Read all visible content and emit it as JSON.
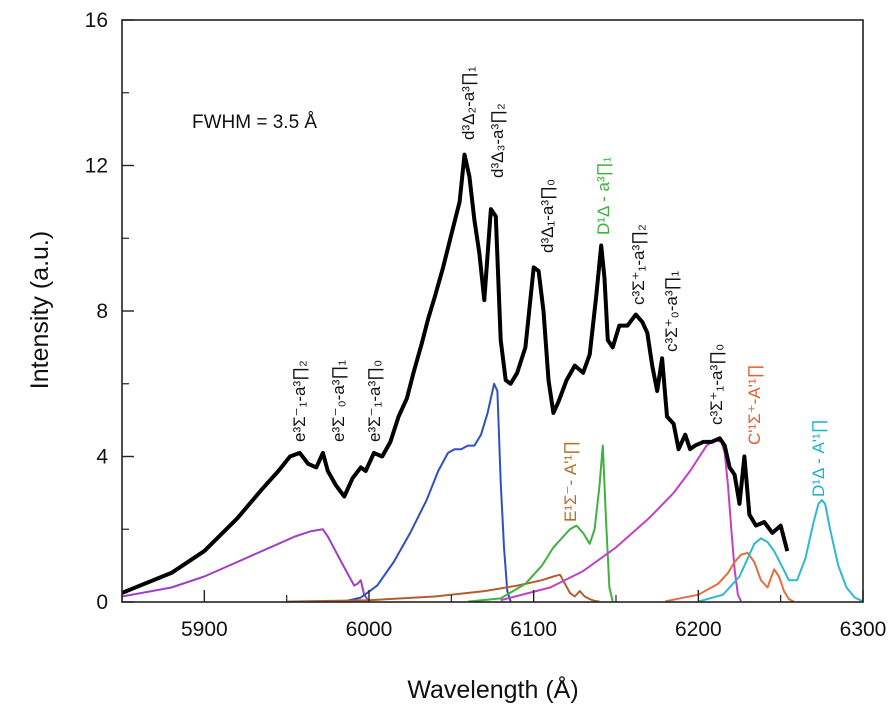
{
  "chart_data": {
    "type": "line",
    "xlabel": "Wavelength (Å)",
    "ylabel": "Intensity (a.u.)",
    "xlim": [
      5850,
      6300
    ],
    "ylim": [
      0,
      16
    ],
    "x_ticks": [
      "5900",
      "6000",
      "6100",
      "6200",
      "6300"
    ],
    "y_ticks": [
      "0",
      "4",
      "8",
      "12",
      "16"
    ],
    "grid": false,
    "annotations": [
      {
        "id": "fwhm",
        "text": "FWHM = 3.5 Å"
      },
      {
        "id": "e1_2",
        "text": "e³Σ⁻₁-a³∏₂"
      },
      {
        "id": "e0_1",
        "text": "e³Σ⁻₀-a³∏₁"
      },
      {
        "id": "e1_0",
        "text": "e³Σ⁻₁-a³∏₀"
      },
      {
        "id": "d2_1",
        "text": "d³Δ₂-a³∏₁"
      },
      {
        "id": "d3_2",
        "text": "d³Δ₃-a³∏₂"
      },
      {
        "id": "d1_0",
        "text": "d³Δ₁-a³∏₀"
      },
      {
        "id": "D1_1",
        "text": "D¹Δ - a³∏₁"
      },
      {
        "id": "c1_2",
        "text": "c³Σ⁺₁-a³∏₂"
      },
      {
        "id": "c0_1",
        "text": "c³Σ⁺₀-a³∏₁"
      },
      {
        "id": "c1_0",
        "text": "c³Σ⁺₁-a³∏₀"
      },
      {
        "id": "E_A",
        "text": "E¹Σ⁻- A'¹∏"
      },
      {
        "id": "C_A",
        "text": "C'¹Σ⁺-A'¹∏"
      },
      {
        "id": "D_A",
        "text": "D¹Δ - A'¹∏"
      }
    ],
    "series": [
      {
        "color": "#000000",
        "x": [
          5850,
          5880,
          5900,
          5920,
          5935,
          5945,
          5952,
          5958,
          5963,
          5968,
          5972,
          5975,
          5980,
          5985,
          5990,
          5995,
          5998,
          6003,
          6008,
          6013,
          6018,
          6023,
          6027,
          6032,
          6036,
          6040,
          6045,
          6050,
          6055,
          6058,
          6061,
          6064,
          6067,
          6070,
          6074,
          6077,
          6080,
          6083,
          6086,
          6090,
          6095,
          6100,
          6103,
          6106,
          6109,
          6112,
          6115,
          6120,
          6125,
          6130,
          6134,
          6138,
          6141,
          6143,
          6145,
          6148,
          6152,
          6157,
          6162,
          6166,
          6169,
          6172,
          6175,
          6178,
          6181,
          6185,
          6188,
          6192,
          6195,
          6198,
          6203,
          6208,
          6213,
          6216,
          6219,
          6222,
          6225,
          6228,
          6231,
          6235,
          6240,
          6245,
          6250,
          6254
        ],
        "y": [
          0.25,
          0.8,
          1.4,
          2.3,
          3.1,
          3.6,
          4.0,
          4.1,
          3.8,
          3.7,
          4.1,
          3.6,
          3.2,
          2.9,
          3.4,
          3.7,
          3.6,
          4.1,
          4.0,
          4.4,
          5.1,
          5.6,
          6.3,
          7.1,
          7.8,
          8.4,
          9.2,
          10.1,
          11.0,
          12.3,
          11.7,
          10.5,
          9.6,
          8.3,
          10.8,
          10.6,
          7.2,
          6.1,
          6.0,
          6.3,
          7.0,
          9.2,
          9.1,
          8.0,
          6.1,
          5.2,
          5.5,
          6.1,
          6.5,
          6.3,
          6.8,
          8.4,
          9.8,
          8.9,
          7.2,
          7.0,
          7.6,
          7.6,
          7.9,
          7.7,
          7.4,
          6.5,
          5.8,
          6.7,
          5.1,
          4.9,
          4.2,
          4.6,
          4.2,
          4.3,
          4.4,
          4.4,
          4.5,
          4.3,
          3.7,
          3.5,
          2.7,
          4.0,
          2.4,
          2.1,
          2.2,
          1.9,
          2.1,
          1.4
        ]
      },
      {
        "color": "#a040c0",
        "x": [
          5850,
          5880,
          5900,
          5920,
          5940,
          5955,
          5965,
          5972,
          5975,
          5982,
          5988,
          5991,
          5993,
          5995,
          5997,
          6000
        ],
        "y": [
          0.15,
          0.4,
          0.7,
          1.1,
          1.5,
          1.8,
          1.95,
          2.0,
          1.8,
          1.2,
          0.7,
          0.45,
          0.5,
          0.6,
          0.2,
          0.02
        ]
      },
      {
        "color": "#3050c0",
        "x": [
          5985,
          5995,
          6005,
          6015,
          6025,
          6035,
          6042,
          6048,
          6052,
          6056,
          6060,
          6064,
          6068,
          6072,
          6076,
          6078,
          6080,
          6082,
          6084,
          6086
        ],
        "y": [
          0.02,
          0.12,
          0.45,
          1.1,
          1.9,
          2.8,
          3.6,
          4.1,
          4.2,
          4.2,
          4.3,
          4.3,
          4.6,
          5.2,
          6.0,
          5.8,
          3.3,
          1.5,
          0.3,
          0.02
        ]
      },
      {
        "color": "#b06030",
        "x": [
          5950,
          6000,
          6040,
          6070,
          6090,
          6105,
          6112,
          6116,
          6119,
          6122,
          6125,
          6128,
          6131,
          6134,
          6137,
          6140
        ],
        "y": [
          0.01,
          0.05,
          0.15,
          0.3,
          0.45,
          0.6,
          0.7,
          0.75,
          0.5,
          0.25,
          0.15,
          0.3,
          0.15,
          0.08,
          0.03,
          0.01
        ]
      },
      {
        "color": "#40b040",
        "x": [
          6060,
          6080,
          6095,
          6105,
          6112,
          6118,
          6122,
          6126,
          6130,
          6134,
          6137,
          6140,
          6142,
          6144,
          6146,
          6148
        ],
        "y": [
          0.01,
          0.1,
          0.5,
          1.0,
          1.5,
          1.8,
          2.0,
          2.1,
          1.9,
          1.6,
          2.0,
          3.2,
          4.3,
          2.2,
          0.4,
          0.02
        ]
      },
      {
        "color": "#c040c8",
        "x": [
          6080,
          6110,
          6130,
          6150,
          6170,
          6185,
          6195,
          6205,
          6210,
          6214,
          6216,
          6218,
          6220,
          6222,
          6224,
          6226
        ],
        "y": [
          0.05,
          0.4,
          0.85,
          1.5,
          2.3,
          3.0,
          3.6,
          4.3,
          4.45,
          4.4,
          4.1,
          3.2,
          2.0,
          0.9,
          0.2,
          0.02
        ]
      },
      {
        "color": "#e07040",
        "x": [
          6180,
          6200,
          6212,
          6218,
          6222,
          6226,
          6230,
          6234,
          6238,
          6242,
          6246,
          6249,
          6252,
          6255,
          6258
        ],
        "y": [
          0.02,
          0.2,
          0.5,
          0.8,
          1.1,
          1.3,
          1.35,
          1.1,
          0.6,
          0.4,
          0.9,
          0.7,
          0.3,
          0.08,
          0.01
        ]
      },
      {
        "color": "#30b8d0",
        "x": [
          6200,
          6215,
          6225,
          6230,
          6234,
          6238,
          6242,
          6246,
          6250,
          6255,
          6260,
          6265,
          6270,
          6273,
          6275,
          6277,
          6280,
          6285,
          6290,
          6295,
          6300
        ],
        "y": [
          0.01,
          0.2,
          0.7,
          1.2,
          1.6,
          1.75,
          1.65,
          1.4,
          1.05,
          0.6,
          0.6,
          1.2,
          2.2,
          2.7,
          2.8,
          2.7,
          2.0,
          1.0,
          0.4,
          0.12,
          0.02
        ]
      }
    ]
  }
}
